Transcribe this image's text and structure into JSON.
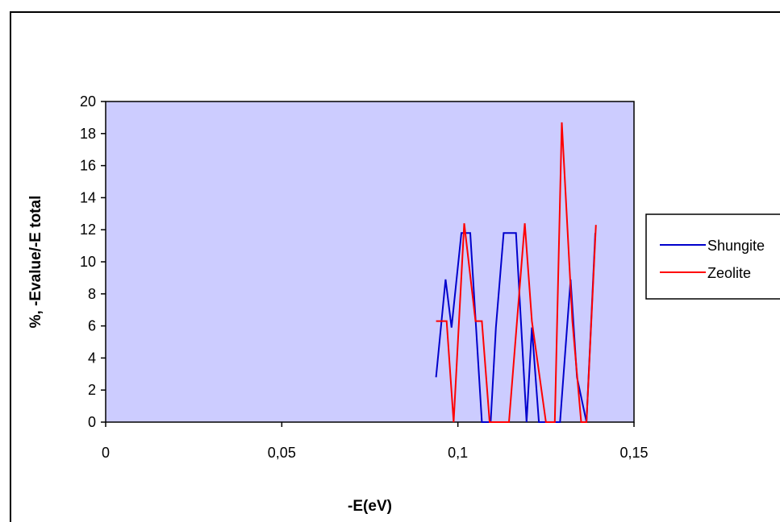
{
  "chart_data": {
    "type": "line",
    "xlabel": "-E(eV)",
    "ylabel": "%, -Evalue/-E total",
    "xlim": [
      0,
      0.15
    ],
    "ylim": [
      0,
      20
    ],
    "x_ticks": [
      0,
      0.05,
      0.1,
      0.15
    ],
    "x_tick_labels": [
      "0",
      "0,05",
      "0,1",
      "0,15"
    ],
    "y_ticks": [
      0,
      2,
      4,
      6,
      8,
      10,
      12,
      14,
      16,
      18,
      20
    ],
    "y_tick_labels": [
      "0",
      "2",
      "4",
      "6",
      "8",
      "10",
      "12",
      "14",
      "16",
      "18",
      "20"
    ],
    "grid": false,
    "legend": "right",
    "plot_background": "#CCCCFF",
    "series": [
      {
        "name": "Shungite",
        "color": "#0000CC",
        "x": [
          0.0938,
          0.0965,
          0.0982,
          0.101,
          0.1022,
          0.1035,
          0.1068,
          0.1093,
          0.1108,
          0.113,
          0.1148,
          0.1165,
          0.1195,
          0.121,
          0.123,
          0.129,
          0.132,
          0.1338,
          0.1365,
          0.139
        ],
        "y": [
          2.8,
          8.9,
          5.9,
          11.8,
          11.8,
          11.8,
          0,
          0,
          5.9,
          11.8,
          11.8,
          11.8,
          0,
          5.9,
          0,
          0,
          8.9,
          2.8,
          0,
          11.8
        ]
      },
      {
        "name": "Zeolite",
        "color": "#FF0000",
        "x": [
          0.0938,
          0.0968,
          0.0988,
          0.1018,
          0.105,
          0.1068,
          0.109,
          0.1145,
          0.119,
          0.121,
          0.125,
          0.1275,
          0.1295,
          0.1325,
          0.135,
          0.1365,
          0.1392
        ],
        "y": [
          6.3,
          6.3,
          0,
          12.4,
          6.3,
          6.3,
          0,
          0,
          12.4,
          6.3,
          0,
          0,
          18.7,
          6.3,
          0,
          0,
          12.3
        ]
      }
    ]
  }
}
